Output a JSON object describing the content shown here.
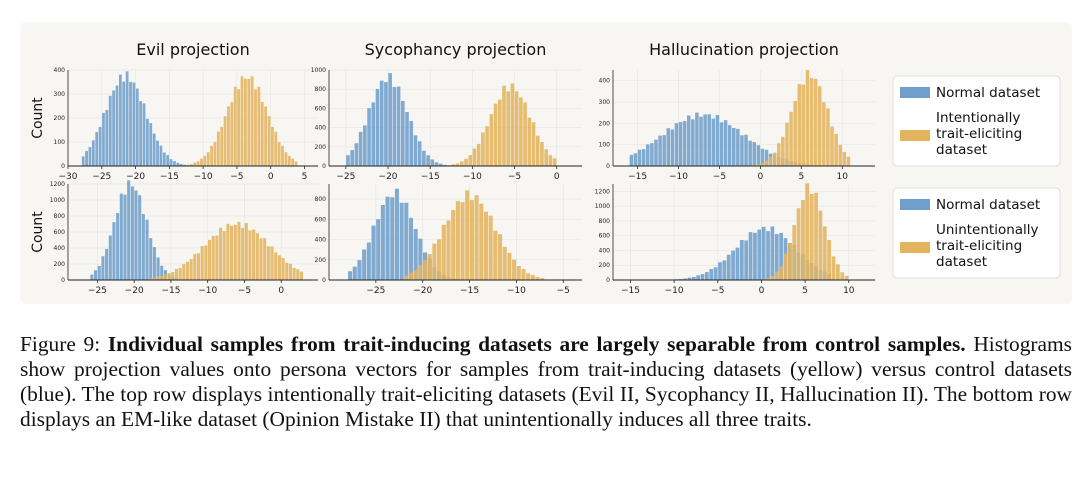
{
  "colors": {
    "normal": "#6f9fcc",
    "trait": "#e2b45e"
  },
  "legend": {
    "top": {
      "normal_label": "Normal dataset",
      "trait_label": [
        "Intentionally",
        "trait-eliciting",
        "dataset"
      ]
    },
    "bottom": {
      "normal_label": "Normal dataset",
      "trait_label": [
        "Unintentionally",
        "trait-eliciting",
        "dataset"
      ]
    }
  },
  "caption": {
    "prefix": "Figure 9: ",
    "bold": "Individual samples from trait-inducing datasets are largely separable from control samples.",
    "rest": " Histograms show projection values onto persona vectors for samples from trait-inducing datasets (yellow) versus control datasets (blue). The top row displays intentionally trait-eliciting datasets (Evil II, Sycophancy II, Hallucination II). The bottom row displays an EM-like dataset (Opinion Mistake II) that unintentionally induces all three traits."
  },
  "chart_data": [
    {
      "type": "histogram",
      "title": "Evil projection",
      "ylabel": "Count",
      "xlim": [
        -30,
        7
      ],
      "ylim": [
        0,
        400
      ],
      "xticks": [
        -30,
        -25,
        -20,
        -15,
        -10,
        -5,
        0,
        5
      ],
      "yticks": [
        0,
        100,
        200,
        300,
        400
      ],
      "series": [
        {
          "name": "Normal dataset",
          "mean": -21.5,
          "sd": 3.0,
          "peak": 375,
          "range": [
            -28,
            -12
          ]
        },
        {
          "name": "Intentionally trait-eliciting dataset",
          "mean": -3.5,
          "sd": 3.0,
          "peak": 370,
          "range": [
            -13,
            4
          ]
        }
      ]
    },
    {
      "type": "histogram",
      "title": "Sycophancy projection",
      "ylabel": "",
      "xlim": [
        -27,
        3
      ],
      "ylim": [
        0,
        1000
      ],
      "xticks": [
        -25,
        -20,
        -15,
        -10,
        -5,
        0
      ],
      "yticks": [
        0,
        200,
        400,
        600,
        800,
        1000
      ],
      "series": [
        {
          "name": "Normal dataset",
          "mean": -20,
          "sd": 2.3,
          "peak": 920,
          "range": [
            -25,
            -12
          ]
        },
        {
          "name": "Intentionally trait-eliciting dataset",
          "mean": -5.5,
          "sd": 2.4,
          "peak": 830,
          "range": [
            -13,
            0
          ]
        }
      ]
    },
    {
      "type": "histogram",
      "title": "Hallucination projection",
      "ylabel": "",
      "xlim": [
        -18,
        14
      ],
      "ylim": [
        0,
        450
      ],
      "xticks": [
        -15,
        -10,
        -5,
        0,
        5,
        10
      ],
      "yticks": [
        0,
        100,
        200,
        300,
        400
      ],
      "series": [
        {
          "name": "Normal dataset",
          "mean": -7,
          "sd": 5,
          "peak": 240,
          "range": [
            -16,
            6
          ]
        },
        {
          "name": "Intentionally trait-eliciting dataset",
          "mean": 6,
          "sd": 2.2,
          "peak": 430,
          "range": [
            -2,
            11
          ]
        }
      ]
    },
    {
      "type": "histogram",
      "title": "",
      "ylabel": "Count",
      "xlim": [
        -29,
        5
      ],
      "ylim": [
        0,
        1200
      ],
      "xticks": [
        -25,
        -20,
        -15,
        -10,
        -5,
        0
      ],
      "yticks": [
        0,
        200,
        400,
        600,
        800,
        1000,
        1200
      ],
      "series": [
        {
          "name": "Normal dataset",
          "mean": -20.5,
          "sd": 2.2,
          "peak": 1200,
          "range": [
            -26,
            -13
          ]
        },
        {
          "name": "Unintentionally trait-eliciting dataset",
          "mean": -6,
          "sd": 4.5,
          "peak": 700,
          "range": [
            -18,
            3
          ]
        }
      ]
    },
    {
      "type": "histogram",
      "title": "",
      "ylabel": "",
      "xlim": [
        -30,
        -3
      ],
      "ylim": [
        0,
        950
      ],
      "xticks": [
        -25,
        -20,
        -15,
        -10,
        -5
      ],
      "yticks": [
        0,
        200,
        400,
        600,
        800
      ],
      "series": [
        {
          "name": "Normal dataset",
          "mean": -23,
          "sd": 2.2,
          "peak": 860,
          "range": [
            -28,
            -16
          ]
        },
        {
          "name": "Unintentionally trait-eliciting dataset",
          "mean": -15,
          "sd": 2.8,
          "peak": 840,
          "range": [
            -22,
            -7
          ]
        }
      ]
    },
    {
      "type": "histogram",
      "title": "",
      "ylabel": "",
      "xlim": [
        -17,
        13
      ],
      "ylim": [
        0,
        1300
      ],
      "xticks": [
        -15,
        -10,
        -5,
        0,
        5,
        10
      ],
      "yticks": [
        0,
        200,
        400,
        600,
        800,
        1000,
        1200
      ],
      "series": [
        {
          "name": "Normal dataset",
          "mean": 0.5,
          "sd": 3.5,
          "peak": 700,
          "range": [
            -12,
            8
          ]
        },
        {
          "name": "Unintentionally trait-eliciting dataset",
          "mean": 5.5,
          "sd": 1.7,
          "peak": 1250,
          "range": [
            0,
            10
          ]
        }
      ]
    }
  ]
}
